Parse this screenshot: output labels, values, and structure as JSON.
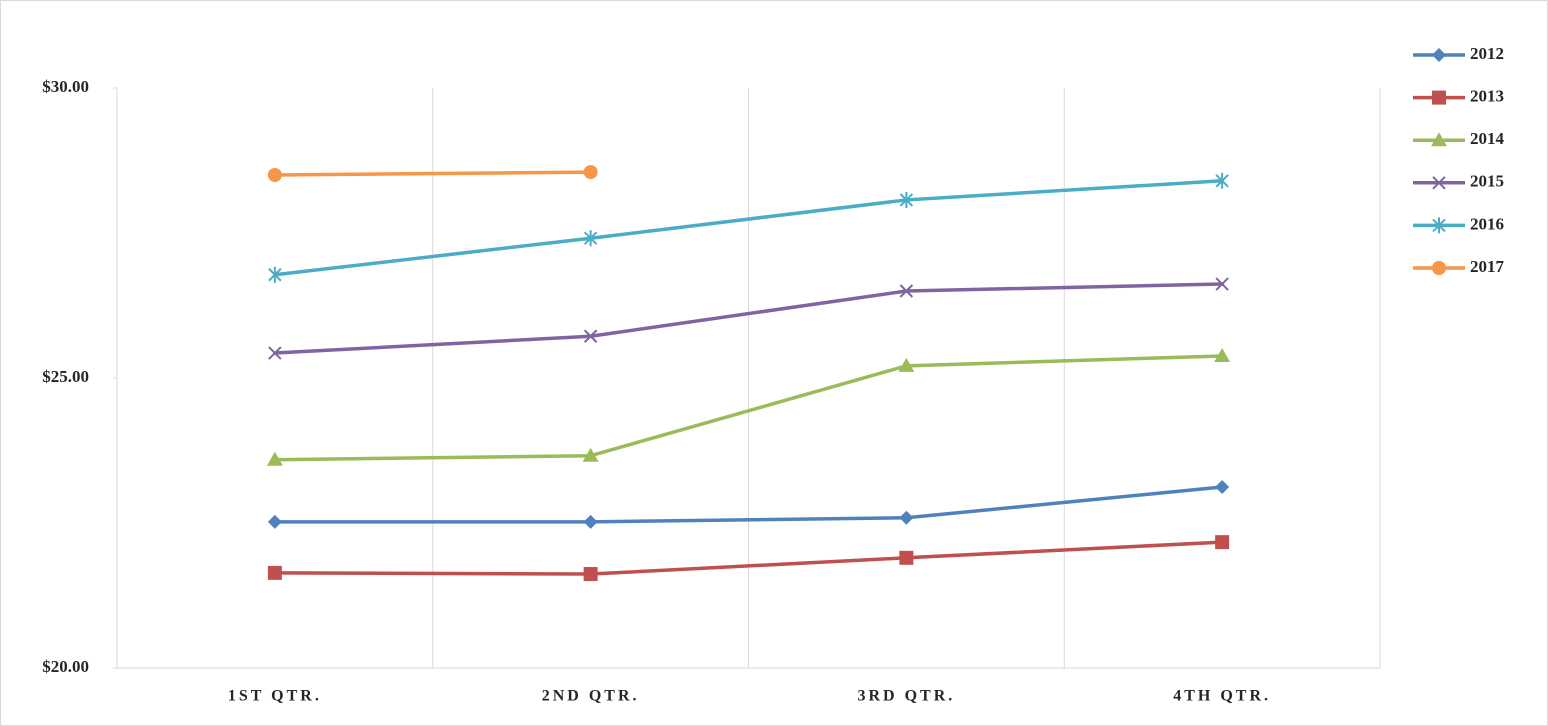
{
  "chart_data": {
    "type": "line",
    "categories": [
      "1ST QTR.",
      "2ND QTR.",
      "3RD QTR.",
      "4TH QTR."
    ],
    "series": [
      {
        "name": "2012",
        "color": "#4f81bd",
        "marker": "diamond",
        "values": [
          22.52,
          22.52,
          22.59,
          23.12
        ]
      },
      {
        "name": "2013",
        "color": "#c0504d",
        "marker": "square",
        "values": [
          21.64,
          21.62,
          21.9,
          22.17
        ]
      },
      {
        "name": "2014",
        "color": "#9bbb59",
        "marker": "triangle",
        "values": [
          23.59,
          23.66,
          25.21,
          25.38
        ]
      },
      {
        "name": "2015",
        "color": "#8064a2",
        "marker": "x",
        "values": [
          25.43,
          25.72,
          26.5,
          26.62
        ]
      },
      {
        "name": "2016",
        "color": "#4bacc6",
        "marker": "star",
        "values": [
          26.78,
          27.41,
          28.07,
          28.4
        ]
      },
      {
        "name": "2017",
        "color": "#f79646",
        "marker": "circle",
        "values": [
          28.5,
          28.55,
          null,
          null
        ]
      }
    ],
    "ylim": [
      20,
      30
    ],
    "yticks": [
      {
        "value": 20,
        "label": "$20.00"
      },
      {
        "value": 25,
        "label": "$25.00"
      },
      {
        "value": 30,
        "label": "$30.00"
      }
    ],
    "grid": "vertical",
    "legend": "right"
  }
}
